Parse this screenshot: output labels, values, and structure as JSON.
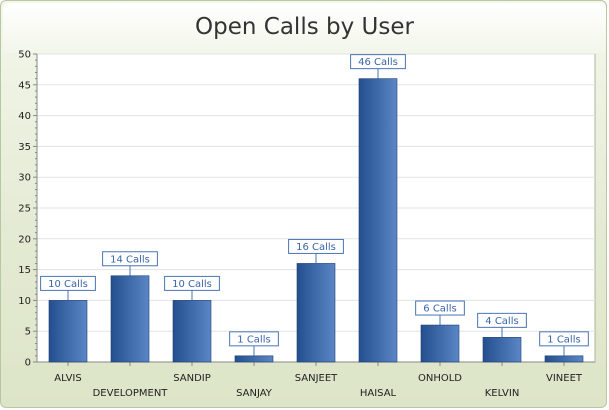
{
  "chart_data": {
    "type": "bar",
    "title": "Open Calls by User",
    "xlabel": "",
    "ylabel": "",
    "categories": [
      "ALVIS",
      "DEVELOPMENT",
      "SANDIP",
      "SANJAY",
      "SANJEET",
      "HAISAL",
      "ONHOLD",
      "KELVIN",
      "VINEET"
    ],
    "values": [
      10,
      14,
      10,
      1,
      16,
      46,
      6,
      4,
      1
    ],
    "data_labels": [
      "10 Calls",
      "14 Calls",
      "10 Calls",
      "1 Calls",
      "16 Calls",
      "46 Calls",
      "6 Calls",
      "4 Calls",
      "1 Calls"
    ],
    "ylim": [
      0,
      50
    ],
    "yticks": [
      0,
      5,
      10,
      15,
      20,
      25,
      30,
      35,
      40,
      45,
      50
    ],
    "grid": true,
    "legend": "none",
    "colors": {
      "bar_dark": "#244f8f",
      "bar_light": "#5b86c6",
      "label_border": "#4a74b4",
      "grid": "#e3e3e3",
      "axis": "#888888"
    }
  }
}
